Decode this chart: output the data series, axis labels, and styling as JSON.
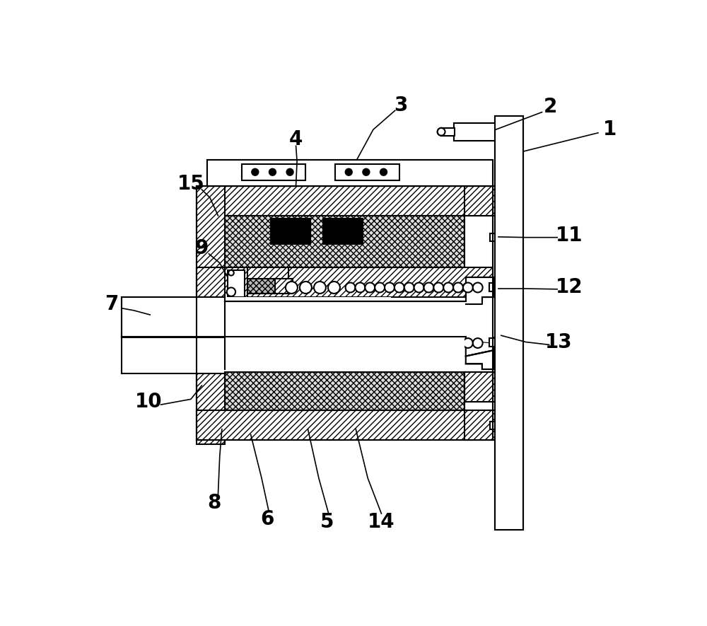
{
  "bg_color": "#ffffff",
  "line_color": "#000000",
  "figsize": [
    10.0,
    8.85
  ],
  "dpi": 100
}
